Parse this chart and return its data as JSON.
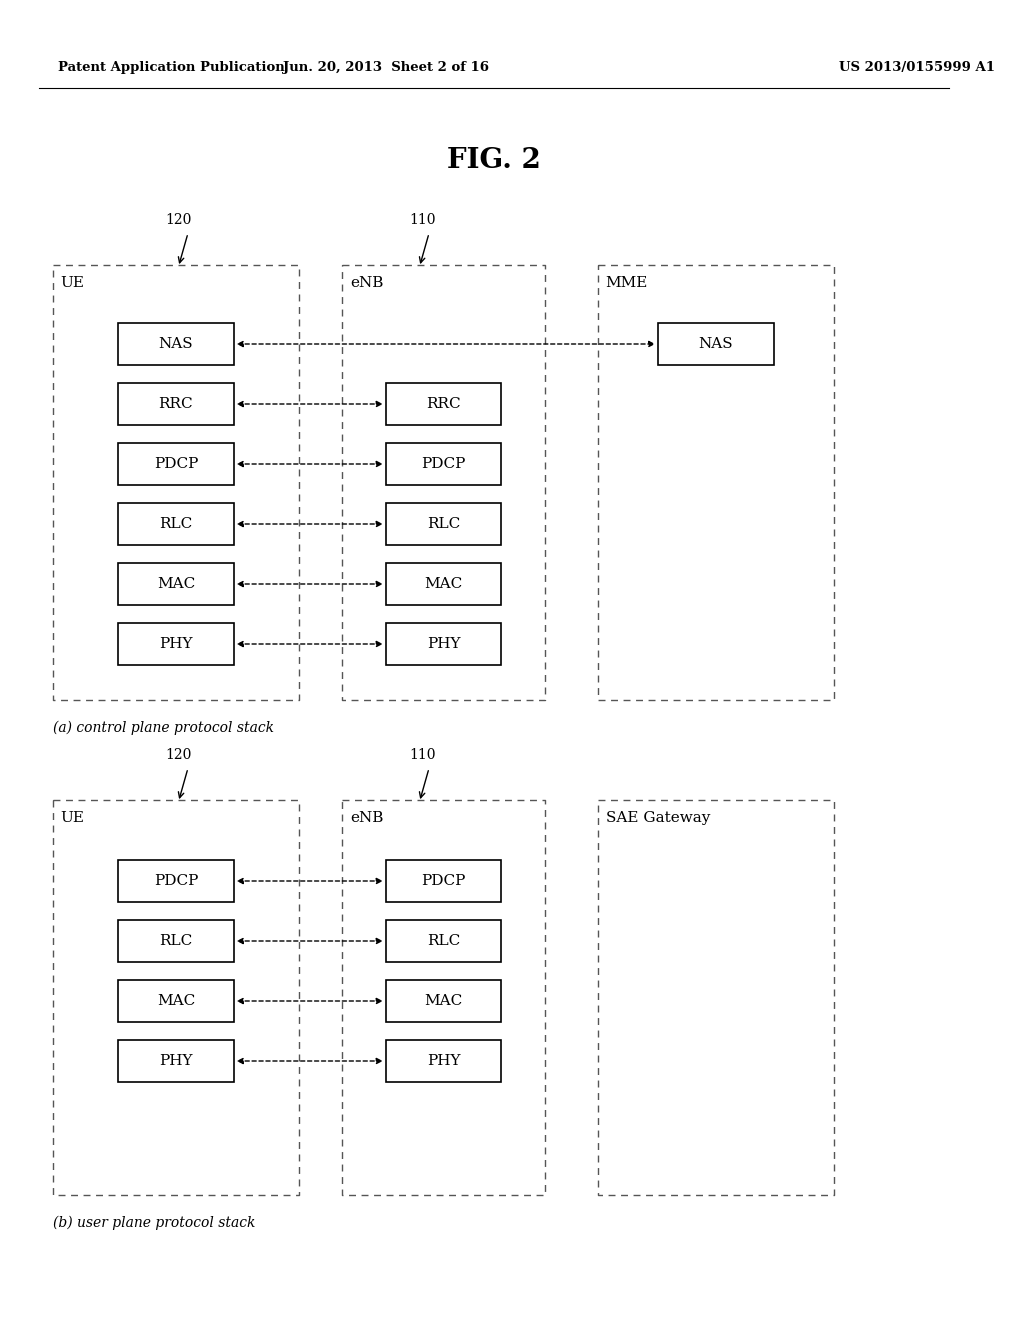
{
  "bg_color": "#ffffff",
  "header_left": "Patent Application Publication",
  "header_mid": "Jun. 20, 2013  Sheet 2 of 16",
  "header_right": "US 2013/0155999 A1",
  "fig_title": "FIG. 2",
  "diagram_a": {
    "caption": "(a) control plane protocol stack",
    "label_120": "120",
    "label_110": "110",
    "ue_label": "UE",
    "enb_label": "eNB",
    "mme_label": "MME",
    "ue_layers": [
      "NAS",
      "RRC",
      "PDCP",
      "RLC",
      "MAC",
      "PHY"
    ],
    "enb_layers": [
      "RRC",
      "PDCP",
      "RLC",
      "MAC",
      "PHY"
    ],
    "mme_layers": [
      "NAS"
    ],
    "nas_connects_to_mme": true
  },
  "diagram_b": {
    "caption": "(b) user plane protocol stack",
    "label_120": "120",
    "label_110": "110",
    "ue_label": "UE",
    "enb_label": "eNB",
    "gw_label": "SAE Gateway",
    "ue_layers": [
      "PDCP",
      "RLC",
      "MAC",
      "PHY"
    ],
    "enb_layers": [
      "PDCP",
      "RLC",
      "MAC",
      "PHY"
    ]
  }
}
